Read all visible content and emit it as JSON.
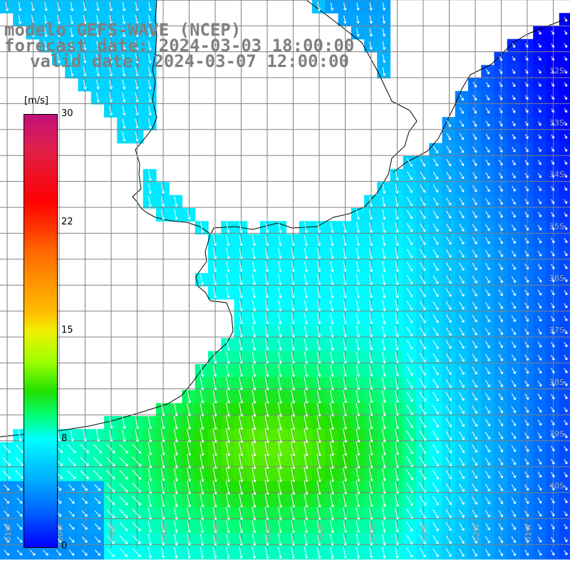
{
  "titles": {
    "model": "modelo GEFS-WAVE (NCEP)",
    "forecast": "forecast date: 2024-03-03 18:00:00",
    "valid": "valid date: 2024-03-07 12:00:00"
  },
  "colorbar": {
    "unit": "[m/s]",
    "ticks": [
      "30",
      "22",
      "15",
      "8",
      "0"
    ],
    "tick_values": [
      30,
      22,
      15,
      8,
      0
    ],
    "range": [
      0,
      30
    ]
  },
  "map": {
    "lat_range": [
      -41,
      -30.5
    ],
    "lon_range": [
      -61,
      -50
    ],
    "lat_labels": [
      {
        "lat": -32,
        "text": "32S"
      },
      {
        "lat": -33,
        "text": "33S"
      },
      {
        "lat": -34,
        "text": "34S"
      },
      {
        "lat": -35,
        "text": "35S"
      },
      {
        "lat": -36,
        "text": "36S"
      },
      {
        "lat": -37,
        "text": "37S"
      },
      {
        "lat": -38,
        "text": "38S"
      },
      {
        "lat": -39,
        "text": "39S"
      },
      {
        "lat": -40,
        "text": "40S"
      }
    ],
    "lon_labels": [
      {
        "lon": -61,
        "text": "61W"
      },
      {
        "lon": -60,
        "text": "60W"
      },
      {
        "lon": -59,
        "text": "59W"
      },
      {
        "lon": -58,
        "text": "58W"
      },
      {
        "lon": -57,
        "text": "57W"
      },
      {
        "lon": -56,
        "text": "56W"
      },
      {
        "lon": -55,
        "text": "55W"
      },
      {
        "lon": -54,
        "text": "54W"
      },
      {
        "lon": -53,
        "text": "53W"
      },
      {
        "lon": -52,
        "text": "52W"
      },
      {
        "lon": -51,
        "text": "51W"
      }
    ],
    "label_color": "#a8a8a8",
    "grid_color": "#808080",
    "land_color": "#ffffff",
    "coast_color": "#000000",
    "arrow_color": "#ffffff"
  }
}
